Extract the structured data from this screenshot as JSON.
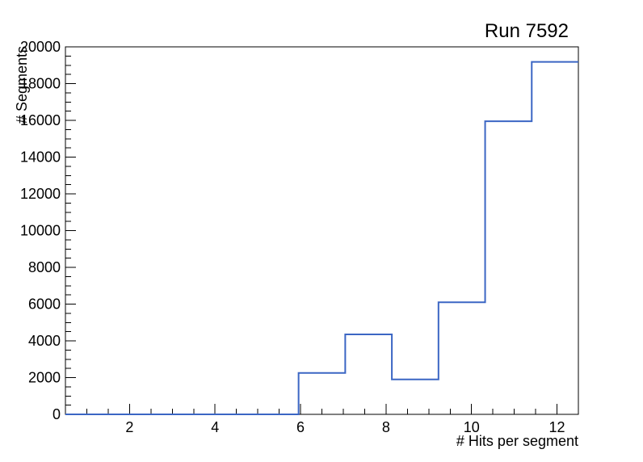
{
  "window": {
    "background": "#ffffff"
  },
  "chart_data": {
    "type": "bar",
    "style": "step-histogram",
    "title": "Run 7592",
    "xlabel": "# Hits per segment",
    "ylabel": "# Segments",
    "xlim": [
      0.5,
      12.5
    ],
    "ylim": [
      0,
      20000
    ],
    "grid": false,
    "legend": null,
    "line_color": "#3b66c4",
    "axis_color": "#000000",
    "bin_edges": [
      0.5,
      1.5909,
      2.6818,
      3.7727,
      4.8636,
      5.9545,
      7.0455,
      8.1364,
      9.2273,
      10.3182,
      11.4091,
      12.5
    ],
    "counts": [
      0,
      0,
      0,
      0,
      0,
      2250,
      4350,
      1900,
      6100,
      15950,
      19180
    ],
    "x_major_ticks": [
      2,
      4,
      6,
      8,
      10,
      12
    ],
    "x_tick_labels": [
      "2",
      "4",
      "6",
      "8",
      "10",
      "12"
    ],
    "x_minor_step": 0.5,
    "y_major_ticks": [
      0,
      2000,
      4000,
      6000,
      8000,
      10000,
      12000,
      14000,
      16000,
      18000,
      20000
    ],
    "y_tick_labels": [
      "0",
      "2000",
      "4000",
      "6000",
      "8000",
      "10000",
      "12000",
      "14000",
      "16000",
      "18000",
      "20000"
    ],
    "y_minor_step": 500
  }
}
